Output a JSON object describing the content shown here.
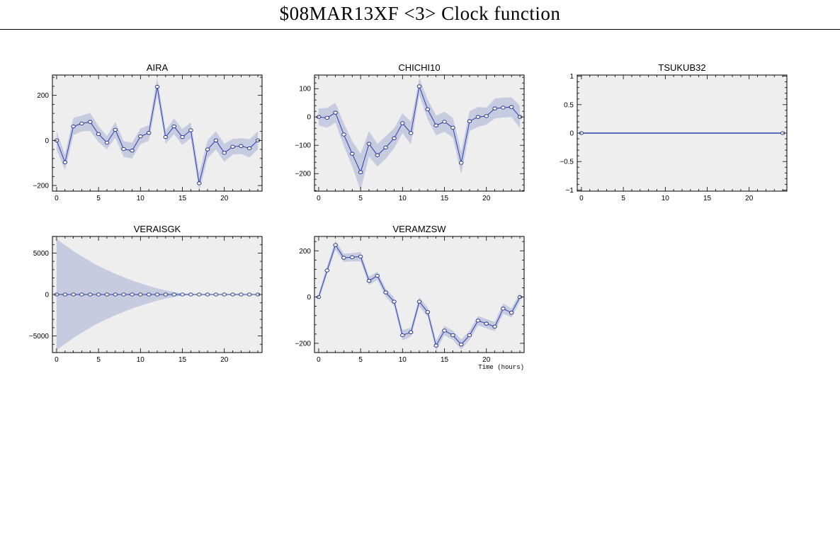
{
  "header": {
    "title": "$08MAR13XF <3>  Clock function"
  },
  "colors": {
    "plot_background": "#eeeeee",
    "band": "#c6cbe0",
    "line": "#2a3fae",
    "marker_edge": "#1c2c86",
    "marker_fill": "#ffffff"
  },
  "chart_data": [
    {
      "type": "line",
      "title": "AIRA",
      "xlabel": "",
      "xlim": [
        -0.5,
        24.5
      ],
      "ylim": [
        -225,
        290
      ],
      "xticks": [
        0,
        5,
        10,
        15,
        20
      ],
      "yticks": [
        -200,
        0,
        200
      ],
      "ytick_labels": [
        "−200",
        "0",
        "200"
      ],
      "x": [
        0,
        1,
        2,
        3,
        4,
        5,
        6,
        7,
        8,
        9,
        10,
        11,
        12,
        13,
        14,
        15,
        16,
        17,
        18,
        19,
        20,
        21,
        22,
        23,
        24
      ],
      "values": [
        0,
        -97,
        62,
        75,
        82,
        28,
        -10,
        47,
        -38,
        -45,
        18,
        33,
        238,
        15,
        62,
        15,
        45,
        -190,
        -40,
        0,
        -55,
        -28,
        -25,
        -35,
        0
      ],
      "band": [
        40,
        35,
        38,
        35,
        40,
        35,
        30,
        35,
        35,
        35,
        35,
        35,
        40,
        30,
        35,
        35,
        35,
        45,
        40,
        40,
        40,
        35,
        35,
        40,
        40
      ]
    },
    {
      "type": "line",
      "title": "CHICHI10",
      "xlabel": "",
      "xlim": [
        -0.5,
        24.5
      ],
      "ylim": [
        -262,
        148
      ],
      "xticks": [
        0,
        5,
        10,
        15,
        20
      ],
      "yticks": [
        -200,
        -100,
        0,
        100
      ],
      "ytick_labels": [
        "−200",
        "−100",
        "0",
        "100"
      ],
      "x": [
        0,
        1,
        2,
        3,
        4,
        5,
        6,
        7,
        8,
        9,
        10,
        11,
        12,
        13,
        14,
        15,
        16,
        17,
        18,
        19,
        20,
        21,
        22,
        23,
        24
      ],
      "values": [
        0,
        -3,
        15,
        -62,
        -130,
        -195,
        -95,
        -135,
        -108,
        -75,
        -22,
        -57,
        108,
        27,
        -30,
        -17,
        -38,
        -162,
        -15,
        0,
        3,
        30,
        33,
        35,
        0
      ],
      "band": [
        30,
        35,
        35,
        40,
        45,
        65,
        45,
        40,
        40,
        35,
        35,
        40,
        30,
        35,
        35,
        35,
        35,
        40,
        35,
        35,
        30,
        35,
        35,
        35,
        40
      ]
    },
    {
      "type": "line",
      "title": "TSUKUB32",
      "xlabel": "",
      "xlim": [
        -0.5,
        24.5
      ],
      "ylim": [
        -1.02,
        1.02
      ],
      "xticks": [
        0,
        5,
        10,
        15,
        20
      ],
      "yticks": [
        -1,
        -0.5,
        0,
        0.5,
        1
      ],
      "ytick_labels": [
        "−1",
        "−0.5",
        "0",
        "0.5",
        "1"
      ],
      "x": [
        0,
        24
      ],
      "values": [
        0,
        0
      ],
      "band": [
        0,
        0
      ]
    },
    {
      "type": "line",
      "title": "VERAISGK",
      "xlabel": "",
      "xlim": [
        -0.5,
        24.5
      ],
      "ylim": [
        -7000,
        7000
      ],
      "xticks": [
        0,
        5,
        10,
        15,
        20
      ],
      "yticks": [
        -5000,
        0,
        5000
      ],
      "ytick_labels": [
        "−5000",
        "0",
        "5000"
      ],
      "x": [
        0,
        1,
        2,
        3,
        4,
        5,
        6,
        7,
        8,
        9,
        10,
        11,
        12,
        13,
        14,
        15,
        16,
        17,
        18,
        19,
        20,
        21,
        22,
        23,
        24
      ],
      "values": [
        0,
        0,
        0,
        0,
        0,
        0,
        0,
        0,
        0,
        0,
        0,
        0,
        0,
        0,
        0,
        0,
        0,
        0,
        0,
        0,
        0,
        0,
        0,
        0,
        0
      ],
      "band": [
        6700,
        5950,
        5250,
        4600,
        4000,
        3450,
        2950,
        2500,
        2100,
        1700,
        1350,
        1030,
        750,
        500,
        290,
        120,
        40,
        40,
        40,
        40,
        40,
        40,
        40,
        40,
        40
      ]
    },
    {
      "type": "line",
      "title": "VERAMZSW",
      "xlabel": "Time (hours)",
      "xlim": [
        -0.5,
        24.5
      ],
      "ylim": [
        -240,
        262
      ],
      "xticks": [
        0,
        5,
        10,
        15,
        20
      ],
      "yticks": [
        -200,
        0,
        200
      ],
      "ytick_labels": [
        "−200",
        "0",
        "200"
      ],
      "x": [
        0,
        1,
        2,
        3,
        4,
        5,
        6,
        7,
        8,
        9,
        10,
        11,
        12,
        13,
        14,
        15,
        16,
        17,
        18,
        19,
        20,
        21,
        22,
        23,
        24
      ],
      "values": [
        0,
        115,
        225,
        170,
        172,
        175,
        70,
        92,
        20,
        -20,
        -165,
        -152,
        -20,
        -65,
        -210,
        -145,
        -165,
        -205,
        -165,
        -102,
        -115,
        -128,
        -50,
        -68,
        0
      ],
      "band": [
        15,
        18,
        20,
        18,
        18,
        20,
        18,
        18,
        18,
        18,
        22,
        20,
        20,
        20,
        22,
        20,
        20,
        22,
        20,
        20,
        20,
        20,
        22,
        20,
        18
      ]
    }
  ]
}
